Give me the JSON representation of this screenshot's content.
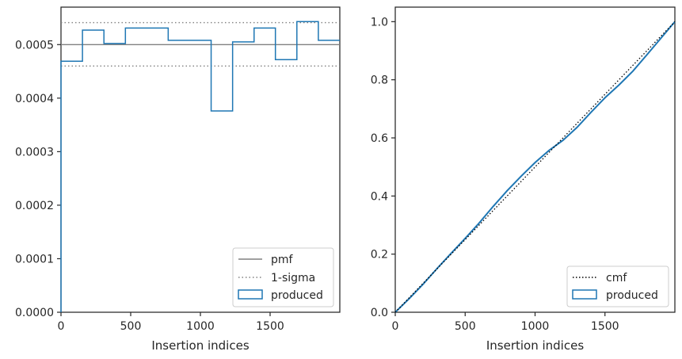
{
  "colors": {
    "produced": "#1f77b4",
    "pmf": "#808080",
    "sigma": "#808080",
    "cmf": "#000000",
    "axes": "#262626"
  },
  "chart_data": [
    {
      "type": "step",
      "xlabel": "Insertion indices",
      "ylabel": "",
      "xlim": [
        0,
        2000
      ],
      "ylim": [
        0,
        0.00057
      ],
      "x_ticks": [
        0,
        500,
        1000,
        1500
      ],
      "x_tick_labels": [
        "0",
        "500",
        "1000",
        "1500"
      ],
      "y_ticks": [
        0,
        0.0001,
        0.0002,
        0.0003,
        0.0004,
        0.0005
      ],
      "y_tick_labels": [
        "0.0000",
        "0.0001",
        "0.0002",
        "0.0003",
        "0.0004",
        "0.0005"
      ],
      "legend_position": "lower-right",
      "pmf": 0.0005,
      "sigma_band": [
        0.00046,
        0.000541
      ],
      "series": [
        {
          "name": "produced",
          "bin_edges": [
            0,
            154,
            308,
            462,
            615,
            769,
            923,
            1077,
            1231,
            1385,
            1538,
            1692,
            1846,
            2000
          ],
          "values": [
            0.000469,
            0.000527,
            0.000502,
            0.000531,
            0.000531,
            0.000508,
            0.000508,
            0.000376,
            0.000505,
            0.000531,
            0.000472,
            0.000543,
            0.000508
          ]
        }
      ],
      "legend": [
        "pmf",
        "1-sigma",
        "produced"
      ]
    },
    {
      "type": "line",
      "xlabel": "Insertion indices",
      "ylabel": "",
      "xlim": [
        0,
        2000
      ],
      "ylim": [
        0,
        1.05
      ],
      "x_ticks": [
        0,
        500,
        1000,
        1500
      ],
      "x_tick_labels": [
        "0",
        "500",
        "1000",
        "1500"
      ],
      "y_ticks": [
        0,
        0.2,
        0.4,
        0.6,
        0.8,
        1.0
      ],
      "y_tick_labels": [
        "0.0",
        "0.2",
        "0.4",
        "0.6",
        "0.8",
        "1.0"
      ],
      "legend_position": "lower-right",
      "series": [
        {
          "name": "cmf",
          "x": [
            0,
            2000
          ],
          "y": [
            0,
            1.0
          ]
        },
        {
          "name": "produced",
          "x": [
            0,
            100,
            200,
            300,
            400,
            500,
            600,
            700,
            800,
            900,
            1000,
            1100,
            1200,
            1300,
            1400,
            1500,
            1600,
            1700,
            1800,
            1900,
            2000
          ],
          "y": [
            0,
            0.047,
            0.097,
            0.151,
            0.203,
            0.254,
            0.307,
            0.364,
            0.418,
            0.468,
            0.515,
            0.557,
            0.592,
            0.636,
            0.688,
            0.738,
            0.782,
            0.83,
            0.886,
            0.943,
            1.0
          ]
        }
      ],
      "legend": [
        "cmf",
        "produced"
      ]
    }
  ]
}
